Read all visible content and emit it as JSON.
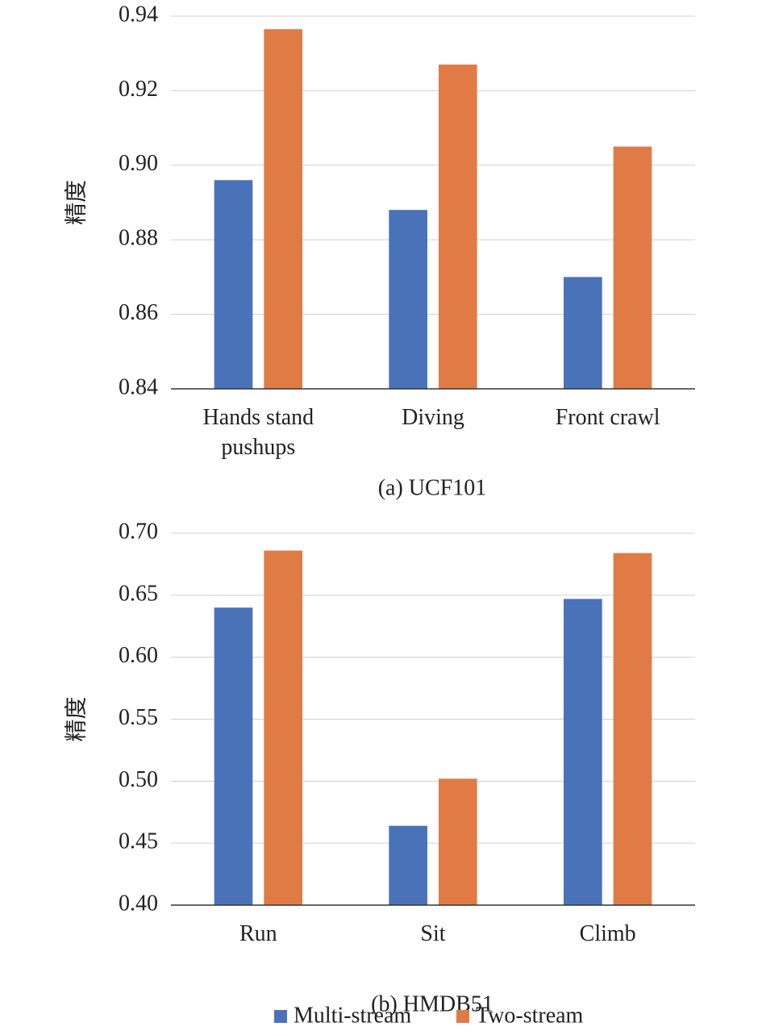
{
  "chart_data": [
    {
      "type": "bar",
      "title": "(a) UCF101",
      "y_label": "精度",
      "categories": [
        "Hands stand pushups",
        "Diving",
        "Front crawl"
      ],
      "series": [
        {
          "color": "#4a72b8",
          "values": [
            0.896,
            0.888,
            0.87
          ]
        },
        {
          "color": "#e07b45",
          "values": [
            0.9365,
            0.927,
            0.905
          ]
        }
      ],
      "ylim": [
        0.84,
        0.94
      ],
      "yticks": [
        0.84,
        0.86,
        0.88,
        {
          "value": 0.9,
          "label": "0.90"
        },
        0.92,
        0.94
      ],
      "grid": true
    },
    {
      "type": "bar",
      "title": "(b) HMDB51",
      "y_label": "精度",
      "categories": [
        "Run",
        "Sit",
        "Climb"
      ],
      "series": [
        {
          "name": "Multi-stream",
          "color": "#4a72b8",
          "values": [
            0.64,
            0.464,
            0.647
          ]
        },
        {
          "name": "Two-stream",
          "color": "#e07b45",
          "values": [
            0.686,
            0.502,
            0.684
          ]
        }
      ],
      "ylim": [
        0.4,
        0.7
      ],
      "yticks": [
        {
          "value": 0.4,
          "label": "0.40"
        },
        0.45,
        {
          "value": 0.5,
          "label": "0.50"
        },
        0.55,
        {
          "value": 0.6,
          "label": "0.60"
        },
        0.65,
        {
          "value": 0.7,
          "label": "0.70"
        }
      ],
      "grid": true
    }
  ]
}
